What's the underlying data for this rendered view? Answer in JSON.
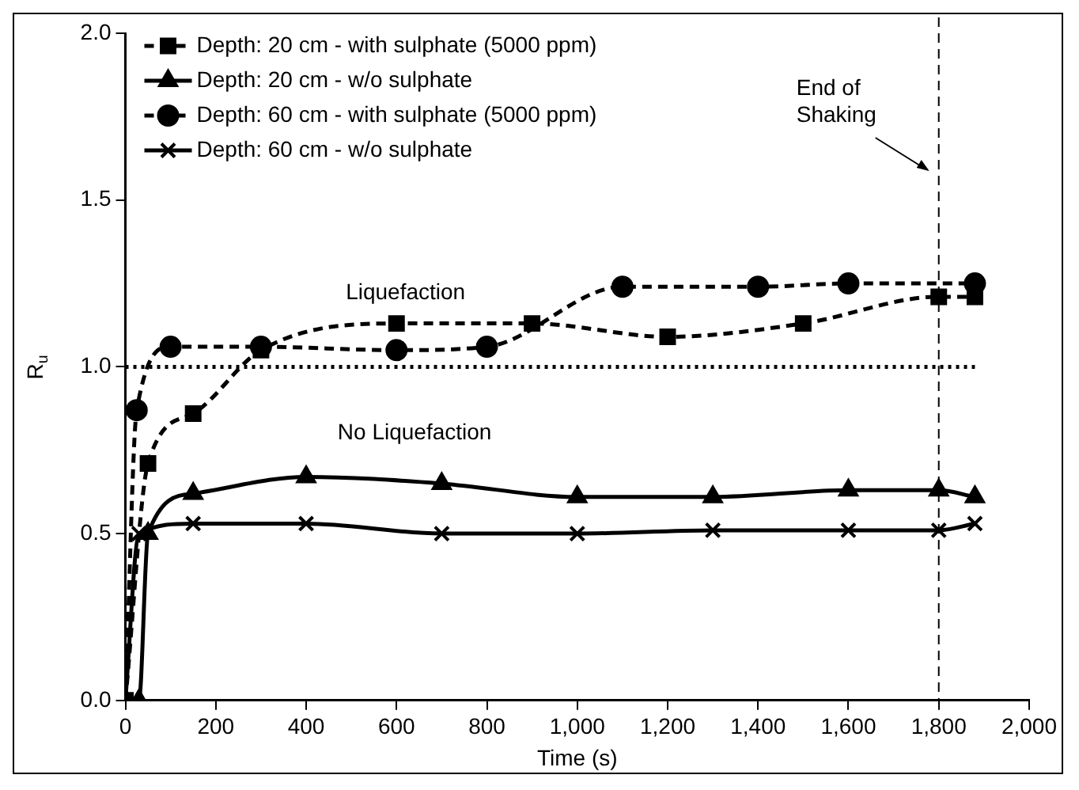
{
  "chart_data": {
    "type": "line",
    "xlabel": "Time (s)",
    "ylabel": "R$_{u}$",
    "xlim": [
      0,
      2000
    ],
    "xticks": [
      0,
      200,
      400,
      600,
      800,
      {
        "value": 1000,
        "label": "1,000"
      },
      {
        "value": 1200,
        "label": "1,200"
      },
      {
        "value": 1400,
        "label": "1,400"
      },
      {
        "value": 1600,
        "label": "1,600"
      },
      {
        "value": 1800,
        "label": "1,800"
      },
      {
        "value": 2000,
        "label": "2,000"
      }
    ],
    "ylim": [
      0,
      2
    ],
    "yticks": [
      {
        "value": 0,
        "label": "0.0"
      },
      {
        "value": 0.5,
        "label": "0.5"
      },
      {
        "value": 1,
        "label": "1.0"
      },
      {
        "value": 1.5,
        "label": "1.5"
      },
      {
        "value": 2,
        "label": "2.0"
      }
    ],
    "grid": false,
    "legend": "top left",
    "series": [
      {
        "name": "Depth: 20 cm - with sulphate (5000 ppm)",
        "color": "#000000",
        "marker": "square",
        "line_style": "dashed",
        "x": [
          0,
          50,
          150,
          300,
          600,
          900,
          1200,
          1500,
          1800,
          1880
        ],
        "values": [
          0,
          0.71,
          0.86,
          1.05,
          1.13,
          1.13,
          1.09,
          1.13,
          1.21,
          1.21
        ]
      },
      {
        "name": "Depth: 20 cm - w/o sulphate",
        "color": "#000000",
        "marker": "triangle",
        "line_style": "solid",
        "x": [
          0,
          30,
          50,
          150,
          400,
          700,
          1000,
          1300,
          1600,
          1800,
          1880
        ],
        "values": [
          0,
          0,
          0.5,
          0.62,
          0.67,
          0.65,
          0.61,
          0.61,
          0.63,
          0.63,
          0.61
        ]
      },
      {
        "name": "Depth: 60 cm - with sulphate (5000 ppm)",
        "color": "#000000",
        "marker": "circle",
        "line_style": "dashed",
        "x": [
          0,
          25,
          100,
          300,
          600,
          800,
          1100,
          1400,
          1600,
          1880
        ],
        "values": [
          0,
          0.87,
          1.06,
          1.06,
          1.05,
          1.06,
          1.24,
          1.24,
          1.25,
          1.25
        ]
      },
      {
        "name": "Depth: 60 cm - w/o sulphate",
        "color": "#000000",
        "marker": "cross",
        "line_style": "solid",
        "x": [
          0,
          30,
          150,
          400,
          700,
          1000,
          1300,
          1600,
          1800,
          1880
        ],
        "values": [
          0,
          0.5,
          0.53,
          0.53,
          0.5,
          0.5,
          0.51,
          0.51,
          0.51,
          0.53
        ]
      }
    ],
    "ref_lines": [
      {
        "axis": "y",
        "value": 1,
        "line_style": "dotted",
        "color": "#000000"
      },
      {
        "axis": "x",
        "value": 1800,
        "label": "End of\nShaking",
        "line_style": "dashed",
        "color": "#000000"
      }
    ],
    "annotations": [
      "Liquefaction",
      "No Liquefaction"
    ]
  }
}
